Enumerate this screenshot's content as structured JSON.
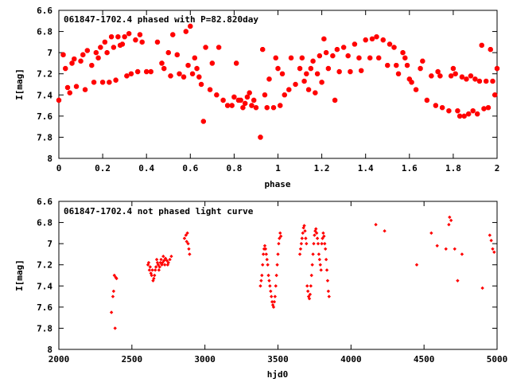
{
  "colors": {
    "marker": "#ff0000",
    "axis": "#000000",
    "background": "#ffffff"
  },
  "chart_data": [
    {
      "type": "scatter",
      "title": "061847-1702.4 phased with P=82.820day",
      "xlabel": "phase",
      "ylabel": "I[mag]",
      "xlim": [
        0,
        2
      ],
      "ylim": [
        6.6,
        8
      ],
      "y_inverted": true,
      "xticks": [
        "0",
        "0.2",
        "0.4",
        "0.6",
        "0.8",
        "1",
        "1.2",
        "1.4",
        "1.6",
        "1.8",
        "2"
      ],
      "yticks": [
        "6.6",
        "6.8",
        "7",
        "7.2",
        "7.4",
        "7.6",
        "7.8",
        "8"
      ],
      "marker": "star",
      "grid": false,
      "points": [
        [
          0.0,
          7.45
        ],
        [
          0.02,
          7.02
        ],
        [
          0.03,
          7.15
        ],
        [
          0.04,
          7.33
        ],
        [
          0.05,
          7.38
        ],
        [
          0.06,
          7.1
        ],
        [
          0.07,
          7.06
        ],
        [
          0.08,
          7.32
        ],
        [
          0.1,
          7.08
        ],
        [
          0.11,
          7.02
        ],
        [
          0.12,
          7.35
        ],
        [
          0.13,
          6.98
        ],
        [
          0.15,
          7.12
        ],
        [
          0.16,
          7.28
        ],
        [
          0.17,
          7.0
        ],
        [
          0.18,
          7.05
        ],
        [
          0.19,
          6.95
        ],
        [
          0.2,
          7.28
        ],
        [
          0.21,
          6.9
        ],
        [
          0.22,
          7.0
        ],
        [
          0.23,
          7.28
        ],
        [
          0.24,
          6.85
        ],
        [
          0.25,
          6.95
        ],
        [
          0.26,
          7.26
        ],
        [
          0.27,
          6.85
        ],
        [
          0.28,
          6.93
        ],
        [
          0.29,
          6.92
        ],
        [
          0.3,
          6.85
        ],
        [
          0.31,
          7.22
        ],
        [
          0.32,
          6.82
        ],
        [
          0.33,
          7.2
        ],
        [
          0.35,
          6.88
        ],
        [
          0.36,
          7.18
        ],
        [
          0.37,
          6.83
        ],
        [
          0.38,
          6.9
        ],
        [
          0.4,
          7.18
        ],
        [
          0.42,
          7.18
        ],
        [
          0.45,
          6.9
        ],
        [
          0.47,
          7.1
        ],
        [
          0.48,
          7.15
        ],
        [
          0.5,
          7.0
        ],
        [
          0.51,
          7.22
        ],
        [
          0.52,
          6.83
        ],
        [
          0.54,
          7.02
        ],
        [
          0.55,
          7.2
        ],
        [
          0.57,
          7.23
        ],
        [
          0.58,
          6.8
        ],
        [
          0.59,
          7.12
        ],
        [
          0.6,
          6.75
        ],
        [
          0.61,
          7.2
        ],
        [
          0.62,
          7.05
        ],
        [
          0.63,
          7.15
        ],
        [
          0.64,
          7.23
        ],
        [
          0.65,
          7.3
        ],
        [
          0.66,
          7.65
        ],
        [
          0.67,
          6.95
        ],
        [
          0.69,
          7.35
        ],
        [
          0.7,
          7.1
        ],
        [
          0.72,
          7.4
        ],
        [
          0.73,
          6.95
        ],
        [
          0.75,
          7.45
        ],
        [
          0.77,
          7.5
        ],
        [
          0.79,
          7.5
        ],
        [
          0.8,
          7.42
        ],
        [
          0.81,
          7.1
        ],
        [
          0.82,
          7.45
        ],
        [
          0.83,
          7.45
        ],
        [
          0.84,
          7.52
        ],
        [
          0.85,
          7.48
        ],
        [
          0.86,
          7.42
        ],
        [
          0.87,
          7.38
        ],
        [
          0.88,
          7.5
        ],
        [
          0.89,
          7.45
        ],
        [
          0.9,
          7.52
        ],
        [
          0.92,
          7.8
        ],
        [
          0.93,
          6.97
        ],
        [
          0.94,
          7.4
        ],
        [
          0.95,
          7.52
        ],
        [
          0.96,
          7.25
        ],
        [
          0.98,
          7.52
        ],
        [
          0.99,
          7.05
        ],
        [
          1.0,
          7.15
        ],
        [
          1.01,
          7.5
        ],
        [
          1.02,
          7.2
        ],
        [
          1.03,
          7.4
        ],
        [
          1.05,
          7.35
        ],
        [
          1.06,
          7.05
        ],
        [
          1.08,
          7.3
        ],
        [
          1.1,
          7.15
        ],
        [
          1.11,
          7.05
        ],
        [
          1.12,
          7.27
        ],
        [
          1.13,
          7.2
        ],
        [
          1.14,
          7.35
        ],
        [
          1.15,
          7.15
        ],
        [
          1.16,
          7.08
        ],
        [
          1.17,
          7.38
        ],
        [
          1.18,
          7.2
        ],
        [
          1.19,
          7.03
        ],
        [
          1.2,
          7.28
        ],
        [
          1.21,
          6.87
        ],
        [
          1.22,
          7.0
        ],
        [
          1.23,
          7.15
        ],
        [
          1.25,
          7.03
        ],
        [
          1.26,
          7.45
        ],
        [
          1.27,
          6.97
        ],
        [
          1.28,
          7.18
        ],
        [
          1.3,
          6.95
        ],
        [
          1.32,
          7.03
        ],
        [
          1.33,
          7.18
        ],
        [
          1.35,
          6.92
        ],
        [
          1.37,
          7.05
        ],
        [
          1.38,
          7.17
        ],
        [
          1.4,
          6.88
        ],
        [
          1.42,
          7.05
        ],
        [
          1.43,
          6.87
        ],
        [
          1.45,
          6.85
        ],
        [
          1.46,
          7.05
        ],
        [
          1.48,
          6.88
        ],
        [
          1.5,
          7.12
        ],
        [
          1.51,
          6.92
        ],
        [
          1.53,
          6.95
        ],
        [
          1.54,
          7.12
        ],
        [
          1.55,
          7.2
        ],
        [
          1.57,
          7.0
        ],
        [
          1.58,
          7.05
        ],
        [
          1.59,
          7.12
        ],
        [
          1.6,
          7.25
        ],
        [
          1.61,
          7.28
        ],
        [
          1.63,
          7.35
        ],
        [
          1.65,
          7.15
        ],
        [
          1.66,
          7.08
        ],
        [
          1.68,
          7.45
        ],
        [
          1.7,
          7.22
        ],
        [
          1.72,
          7.5
        ],
        [
          1.73,
          7.18
        ],
        [
          1.74,
          7.22
        ],
        [
          1.75,
          7.52
        ],
        [
          1.78,
          7.55
        ],
        [
          1.79,
          7.22
        ],
        [
          1.8,
          7.15
        ],
        [
          1.81,
          7.2
        ],
        [
          1.82,
          7.55
        ],
        [
          1.83,
          7.6
        ],
        [
          1.84,
          7.23
        ],
        [
          1.85,
          7.6
        ],
        [
          1.86,
          7.25
        ],
        [
          1.87,
          7.58
        ],
        [
          1.88,
          7.22
        ],
        [
          1.89,
          7.55
        ],
        [
          1.9,
          7.25
        ],
        [
          1.91,
          7.58
        ],
        [
          1.92,
          7.27
        ],
        [
          1.93,
          6.93
        ],
        [
          1.94,
          7.53
        ],
        [
          1.95,
          7.27
        ],
        [
          1.96,
          7.52
        ],
        [
          1.97,
          6.97
        ],
        [
          1.98,
          7.27
        ],
        [
          1.99,
          7.4
        ],
        [
          2.0,
          7.15
        ]
      ]
    },
    {
      "type": "scatter",
      "title": "061847-1702.4 not phased light curve",
      "xlabel": "hjd0",
      "ylabel": "I[mag]",
      "xlim": [
        2000,
        5000
      ],
      "ylim": [
        6.6,
        8
      ],
      "y_inverted": true,
      "xticks": [
        "2000",
        "2500",
        "3000",
        "3500",
        "4000",
        "4500",
        "5000"
      ],
      "yticks": [
        "6.6",
        "6.8",
        "7",
        "7.2",
        "7.4",
        "7.6",
        "7.8",
        "8"
      ],
      "marker": "diamond",
      "grid": false,
      "points": [
        [
          2360,
          7.65
        ],
        [
          2370,
          7.5
        ],
        [
          2375,
          7.45
        ],
        [
          2380,
          7.3
        ],
        [
          2385,
          7.8
        ],
        [
          2390,
          7.32
        ],
        [
          2395,
          7.33
        ],
        [
          2610,
          7.2
        ],
        [
          2615,
          7.18
        ],
        [
          2620,
          7.25
        ],
        [
          2625,
          7.22
        ],
        [
          2630,
          7.28
        ],
        [
          2635,
          7.3
        ],
        [
          2640,
          7.25
        ],
        [
          2645,
          7.35
        ],
        [
          2650,
          7.33
        ],
        [
          2655,
          7.3
        ],
        [
          2660,
          7.25
        ],
        [
          2665,
          7.22
        ],
        [
          2670,
          7.15
        ],
        [
          2675,
          7.18
        ],
        [
          2680,
          7.2
        ],
        [
          2685,
          7.25
        ],
        [
          2690,
          7.22
        ],
        [
          2695,
          7.18
        ],
        [
          2700,
          7.15
        ],
        [
          2705,
          7.2
        ],
        [
          2710,
          7.18
        ],
        [
          2715,
          7.12
        ],
        [
          2720,
          7.16
        ],
        [
          2725,
          7.2
        ],
        [
          2730,
          7.14
        ],
        [
          2740,
          7.16
        ],
        [
          2745,
          7.2
        ],
        [
          2750,
          7.18
        ],
        [
          2760,
          7.15
        ],
        [
          2770,
          7.12
        ],
        [
          2860,
          6.95
        ],
        [
          2870,
          6.92
        ],
        [
          2875,
          6.98
        ],
        [
          2880,
          6.9
        ],
        [
          2885,
          7.0
        ],
        [
          2890,
          7.05
        ],
        [
          2895,
          7.1
        ],
        [
          3380,
          7.4
        ],
        [
          3385,
          7.35
        ],
        [
          3390,
          7.3
        ],
        [
          3395,
          7.2
        ],
        [
          3400,
          7.1
        ],
        [
          3405,
          7.05
        ],
        [
          3410,
          7.02
        ],
        [
          3415,
          7.05
        ],
        [
          3420,
          7.1
        ],
        [
          3425,
          7.15
        ],
        [
          3430,
          7.2
        ],
        [
          3435,
          7.3
        ],
        [
          3440,
          7.35
        ],
        [
          3445,
          7.4
        ],
        [
          3450,
          7.45
        ],
        [
          3455,
          7.5
        ],
        [
          3460,
          7.55
        ],
        [
          3465,
          7.58
        ],
        [
          3470,
          7.6
        ],
        [
          3475,
          7.55
        ],
        [
          3480,
          7.5
        ],
        [
          3485,
          7.4
        ],
        [
          3490,
          7.3
        ],
        [
          3495,
          7.2
        ],
        [
          3500,
          7.1
        ],
        [
          3505,
          7.0
        ],
        [
          3510,
          6.95
        ],
        [
          3515,
          6.9
        ],
        [
          3520,
          6.93
        ],
        [
          3650,
          7.1
        ],
        [
          3655,
          7.05
        ],
        [
          3660,
          7.0
        ],
        [
          3665,
          6.95
        ],
        [
          3670,
          6.9
        ],
        [
          3675,
          6.85
        ],
        [
          3680,
          6.83
        ],
        [
          3685,
          6.88
        ],
        [
          3690,
          6.95
        ],
        [
          3695,
          7.0
        ],
        [
          3700,
          7.4
        ],
        [
          3705,
          7.45
        ],
        [
          3710,
          7.5
        ],
        [
          3715,
          7.52
        ],
        [
          3720,
          7.48
        ],
        [
          3725,
          7.4
        ],
        [
          3730,
          7.3
        ],
        [
          3735,
          7.2
        ],
        [
          3740,
          7.1
        ],
        [
          3745,
          7.0
        ],
        [
          3750,
          6.92
        ],
        [
          3755,
          6.88
        ],
        [
          3760,
          6.86
        ],
        [
          3765,
          6.9
        ],
        [
          3770,
          6.95
        ],
        [
          3775,
          7.0
        ],
        [
          3780,
          7.1
        ],
        [
          3785,
          7.15
        ],
        [
          3790,
          7.2
        ],
        [
          3795,
          7.25
        ],
        [
          3800,
          7.0
        ],
        [
          3805,
          6.95
        ],
        [
          3810,
          6.9
        ],
        [
          3815,
          6.93
        ],
        [
          3820,
          7.0
        ],
        [
          3825,
          7.05
        ],
        [
          3830,
          7.15
        ],
        [
          3835,
          7.25
        ],
        [
          3840,
          7.35
        ],
        [
          3845,
          7.45
        ],
        [
          3850,
          7.5
        ],
        [
          4170,
          6.82
        ],
        [
          4230,
          6.88
        ],
        [
          4450,
          7.2
        ],
        [
          4550,
          6.9
        ],
        [
          4590,
          7.02
        ],
        [
          4650,
          7.05
        ],
        [
          4670,
          6.82
        ],
        [
          4675,
          6.75
        ],
        [
          4685,
          6.78
        ],
        [
          4710,
          7.05
        ],
        [
          4730,
          7.35
        ],
        [
          4760,
          7.1
        ],
        [
          4900,
          7.42
        ],
        [
          4950,
          6.92
        ],
        [
          4960,
          6.97
        ],
        [
          4970,
          7.05
        ],
        [
          4980,
          7.08
        ]
      ]
    }
  ]
}
